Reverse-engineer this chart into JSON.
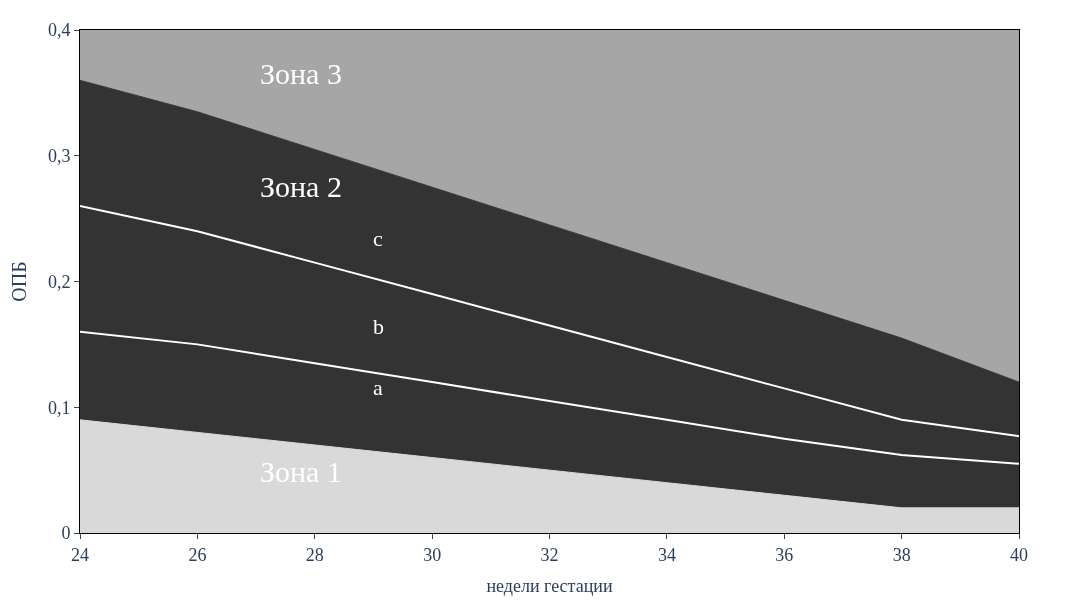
{
  "chart_data": {
    "type": "area",
    "xlabel": "недели гестации",
    "ylabel": "ОПБ",
    "x": [
      24,
      26,
      28,
      30,
      32,
      34,
      36,
      38,
      40
    ],
    "series": [
      {
        "color": "#d9d9d9",
        "values": [
          0.09,
          0.08,
          0.07,
          0.06,
          0.05,
          0.04,
          0.03,
          0.02,
          0.02
        ]
      },
      {
        "color": "#333333",
        "values": [
          0.36,
          0.335,
          0.305,
          0.275,
          0.245,
          0.215,
          0.185,
          0.155,
          0.12
        ]
      },
      {
        "color": "#a6a6a6",
        "values": [
          0.4,
          0.4,
          0.4,
          0.4,
          0.4,
          0.4,
          0.4,
          0.4,
          0.4
        ]
      },
      {
        "type": "line",
        "color": "#ffffff",
        "values": [
          0.16,
          0.15,
          0.135,
          0.12,
          0.105,
          0.09,
          0.075,
          0.062,
          0.055
        ]
      },
      {
        "type": "line",
        "color": "#ffffff",
        "values": [
          0.26,
          0.24,
          0.215,
          0.19,
          0.165,
          0.14,
          0.115,
          0.09,
          0.077
        ]
      }
    ],
    "xlim": [
      24,
      40
    ],
    "xticks": [
      24,
      26,
      28,
      30,
      32,
      34,
      36,
      38,
      40
    ],
    "ylim": [
      0,
      0.4
    ],
    "yticks": [
      0,
      {
        "value": 0.1,
        "label": "0,1"
      },
      {
        "value": 0.2,
        "label": "0,2"
      },
      {
        "value": 0.3,
        "label": "0,3"
      },
      {
        "value": 0.4,
        "label": "0,4"
      }
    ],
    "annotations": [
      "Зона 3",
      "Зона 2",
      "Зона 1",
      "c",
      "b",
      "a"
    ]
  }
}
